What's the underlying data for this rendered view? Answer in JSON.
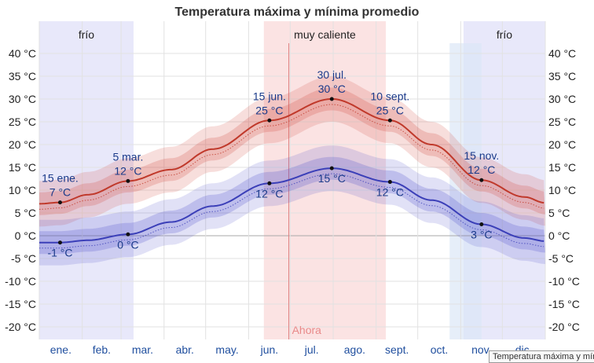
{
  "chart_data": {
    "type": "line",
    "title": "Temperatura máxima y mínima promedio",
    "y_ticks_left": [
      "40 °C",
      "35 °C",
      "30 °C",
      "25 °C",
      "20 °C",
      "15 °C",
      "10 °C",
      "5 °C",
      "0 °C",
      "-5 °C",
      "-10 °C",
      "-15 °C",
      "-20 °C"
    ],
    "y_ticks_right": [
      "40 °C",
      "35 °C",
      "30 °C",
      "25 °C",
      "20 °C",
      "15 °C",
      "10 °C",
      "5 °C",
      "0 °C",
      "-5 °C",
      "-10 °C",
      "-15 °C",
      "-20 °C"
    ],
    "ylim": [
      -22,
      42
    ],
    "months": [
      "ene.",
      "feb.",
      "mar.",
      "abr.",
      "may.",
      "jun.",
      "jul.",
      "ago.",
      "sept.",
      "oct.",
      "nov.",
      "dic."
    ],
    "bands": [
      {
        "label": "frío",
        "kind": "cold",
        "from_day": 0,
        "to_day": 68
      },
      {
        "label": "muy caliente",
        "kind": "hot",
        "from_day": 162,
        "to_day": 250
      },
      {
        "label": "frío",
        "kind": "cold",
        "from_day": 306,
        "to_day": 365
      }
    ],
    "now_label": "Ahora",
    "now_day": 180,
    "series": [
      {
        "name": "max",
        "color": "#c0392b",
        "days": [
          0,
          15,
          35,
          64,
          95,
          125,
          166,
          211,
          253,
          283,
          319,
          350,
          365
        ],
        "values": [
          7.0,
          7.3,
          9.0,
          12.0,
          14.5,
          19.0,
          25.3,
          30.0,
          25.3,
          20.0,
          12.2,
          8.5,
          7.2
        ]
      },
      {
        "name": "min",
        "color": "#3b3fb8",
        "days": [
          0,
          15,
          35,
          64,
          95,
          125,
          166,
          211,
          253,
          283,
          319,
          350,
          365
        ],
        "values": [
          -1.5,
          -1.5,
          -1.0,
          0.3,
          3.0,
          6.5,
          11.5,
          14.8,
          11.8,
          7.8,
          2.5,
          -0.5,
          -1.2
        ]
      }
    ],
    "annotations": [
      {
        "day": 15,
        "series": "max",
        "lines": [
          "15 ene.",
          "7 °C"
        ],
        "pos": "above"
      },
      {
        "day": 15,
        "series": "min",
        "lines": [
          "-1 °C"
        ],
        "pos": "below"
      },
      {
        "day": 64,
        "series": "max",
        "lines": [
          "5 mar.",
          "12 °C"
        ],
        "pos": "above"
      },
      {
        "day": 64,
        "series": "min",
        "lines": [
          "0 °C"
        ],
        "pos": "below"
      },
      {
        "day": 166,
        "series": "max",
        "lines": [
          "15 jun.",
          "25 °C"
        ],
        "pos": "above"
      },
      {
        "day": 166,
        "series": "min",
        "lines": [
          "12 °C"
        ],
        "pos": "below"
      },
      {
        "day": 211,
        "series": "max",
        "lines": [
          "30 jul.",
          "30 °C"
        ],
        "pos": "above"
      },
      {
        "day": 211,
        "series": "min",
        "lines": [
          "15 °C"
        ],
        "pos": "below"
      },
      {
        "day": 253,
        "series": "max",
        "lines": [
          "10 sept.",
          "25 °C"
        ],
        "pos": "above"
      },
      {
        "day": 253,
        "series": "min",
        "lines": [
          "12 °C"
        ],
        "pos": "below"
      },
      {
        "day": 319,
        "series": "max",
        "lines": [
          "15 nov.",
          "12 °C"
        ],
        "pos": "above"
      },
      {
        "day": 319,
        "series": "min",
        "lines": [
          "3 °C"
        ],
        "pos": "below"
      }
    ]
  },
  "tooltip": {
    "text": "Temperatura máxima y mínima promedio"
  }
}
